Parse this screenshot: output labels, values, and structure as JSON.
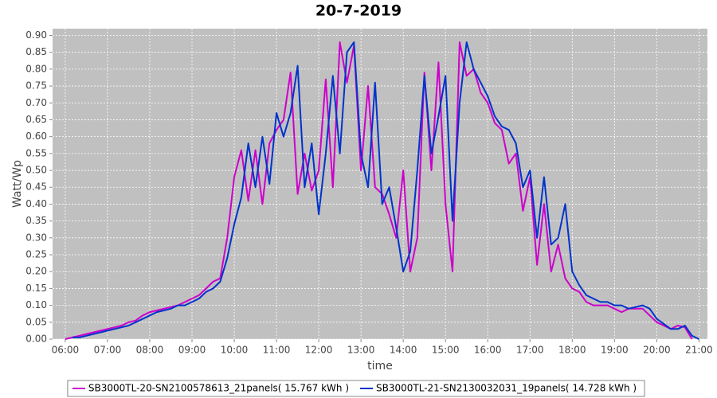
{
  "chart_data": {
    "type": "line",
    "title": "20-7-2019",
    "x_label": "time",
    "y_label": "Watt/Wp",
    "x": [
      "06:00",
      "06:10",
      "06:20",
      "06:30",
      "06:40",
      "06:50",
      "07:00",
      "07:10",
      "07:20",
      "07:30",
      "07:40",
      "07:50",
      "08:00",
      "08:10",
      "08:20",
      "08:30",
      "08:40",
      "08:50",
      "09:00",
      "09:10",
      "09:20",
      "09:30",
      "09:40",
      "09:50",
      "10:00",
      "10:10",
      "10:20",
      "10:30",
      "10:40",
      "10:50",
      "11:00",
      "11:10",
      "11:20",
      "11:30",
      "11:40",
      "11:50",
      "12:00",
      "12:10",
      "12:20",
      "12:30",
      "12:40",
      "12:50",
      "13:00",
      "13:10",
      "13:20",
      "13:30",
      "13:40",
      "13:50",
      "14:00",
      "14:10",
      "14:20",
      "14:30",
      "14:40",
      "14:50",
      "15:00",
      "15:10",
      "15:20",
      "15:30",
      "15:40",
      "15:50",
      "16:00",
      "16:10",
      "16:20",
      "16:30",
      "16:40",
      "16:50",
      "17:00",
      "17:10",
      "17:20",
      "17:30",
      "17:40",
      "17:50",
      "18:00",
      "18:10",
      "18:20",
      "18:30",
      "18:40",
      "18:50",
      "19:00",
      "19:10",
      "19:20",
      "19:30",
      "19:40",
      "19:50",
      "20:00",
      "20:10",
      "20:20",
      "20:30",
      "20:40",
      "20:50",
      "21:00"
    ],
    "series": [
      {
        "name": "SB3000TL-20-SN2100578613_21panels( 15.767 kWh )",
        "color": "#cc00cc",
        "values": [
          0.0,
          0.005,
          0.01,
          0.015,
          0.02,
          0.025,
          0.03,
          0.035,
          0.04,
          0.05,
          0.055,
          0.07,
          0.08,
          0.085,
          0.09,
          0.095,
          0.1,
          0.11,
          0.12,
          0.13,
          0.15,
          0.17,
          0.18,
          0.3,
          0.48,
          0.56,
          0.41,
          0.56,
          0.4,
          0.58,
          0.62,
          0.65,
          0.79,
          0.43,
          0.55,
          0.44,
          0.5,
          0.77,
          0.45,
          0.88,
          0.76,
          0.87,
          0.5,
          0.75,
          0.45,
          0.43,
          0.37,
          0.3,
          0.5,
          0.2,
          0.3,
          0.79,
          0.5,
          0.82,
          0.4,
          0.2,
          0.88,
          0.78,
          0.8,
          0.73,
          0.7,
          0.64,
          0.62,
          0.52,
          0.55,
          0.38,
          0.48,
          0.22,
          0.4,
          0.2,
          0.28,
          0.18,
          0.15,
          0.14,
          0.11,
          0.1,
          0.1,
          0.1,
          0.09,
          0.08,
          0.09,
          0.09,
          0.09,
          0.07,
          0.05,
          0.04,
          0.03,
          0.04,
          0.035,
          0.0,
          null
        ]
      },
      {
        "name": "SB3000TL-21-SN2130032031_19panels( 14.728 kWh )",
        "color": "#0033cc",
        "values": [
          null,
          0.005,
          0.005,
          0.01,
          0.015,
          0.02,
          0.025,
          0.03,
          0.035,
          0.04,
          0.05,
          0.06,
          0.07,
          0.08,
          0.085,
          0.09,
          0.1,
          0.1,
          0.11,
          0.12,
          0.14,
          0.15,
          0.17,
          0.24,
          0.34,
          0.42,
          0.58,
          0.45,
          0.6,
          0.46,
          0.67,
          0.6,
          0.67,
          0.81,
          0.45,
          0.58,
          0.37,
          0.55,
          0.78,
          0.55,
          0.85,
          0.88,
          0.55,
          0.45,
          0.76,
          0.4,
          0.45,
          0.33,
          0.2,
          0.26,
          0.5,
          0.78,
          0.55,
          0.66,
          0.78,
          0.35,
          0.7,
          0.88,
          0.8,
          0.76,
          0.72,
          0.66,
          0.63,
          0.62,
          0.58,
          0.45,
          0.5,
          0.3,
          0.48,
          0.28,
          0.3,
          0.4,
          0.2,
          0.16,
          0.13,
          0.12,
          0.11,
          0.11,
          0.1,
          0.1,
          0.09,
          0.095,
          0.1,
          0.09,
          0.06,
          0.045,
          0.03,
          0.03,
          0.04,
          0.01,
          0.0
        ]
      }
    ],
    "xlim": [
      "05:42",
      "21:12"
    ],
    "xticks": [
      "06:00",
      "07:00",
      "08:00",
      "09:00",
      "10:00",
      "11:00",
      "12:00",
      "13:00",
      "14:00",
      "15:00",
      "16:00",
      "17:00",
      "18:00",
      "19:00",
      "20:00",
      "21:00"
    ],
    "ylim": [
      0,
      0.92
    ],
    "yticks": [
      {
        "value": 0,
        "label": "0.00"
      },
      {
        "value": 0.05,
        "label": "0.05"
      },
      {
        "value": 0.1,
        "label": "0.10"
      },
      {
        "value": 0.15,
        "label": "0.15"
      },
      {
        "value": 0.2,
        "label": "0.20"
      },
      {
        "value": 0.25,
        "label": "0.25"
      },
      {
        "value": 0.3,
        "label": "0.30"
      },
      {
        "value": 0.35,
        "label": "0.35"
      },
      {
        "value": 0.4,
        "label": "0.40"
      },
      {
        "value": 0.45,
        "label": "0.45"
      },
      {
        "value": 0.5,
        "label": "0.50"
      },
      {
        "value": 0.55,
        "label": "0.55"
      },
      {
        "value": 0.6,
        "label": "0.60"
      },
      {
        "value": 0.65,
        "label": "0.65"
      },
      {
        "value": 0.7,
        "label": "0.70"
      },
      {
        "value": 0.75,
        "label": "0.75"
      },
      {
        "value": 0.8,
        "label": "0.80"
      },
      {
        "value": 0.85,
        "label": "0.85"
      },
      {
        "value": 0.9,
        "label": "0.90"
      }
    ],
    "grid": true,
    "legend": "bottom"
  }
}
